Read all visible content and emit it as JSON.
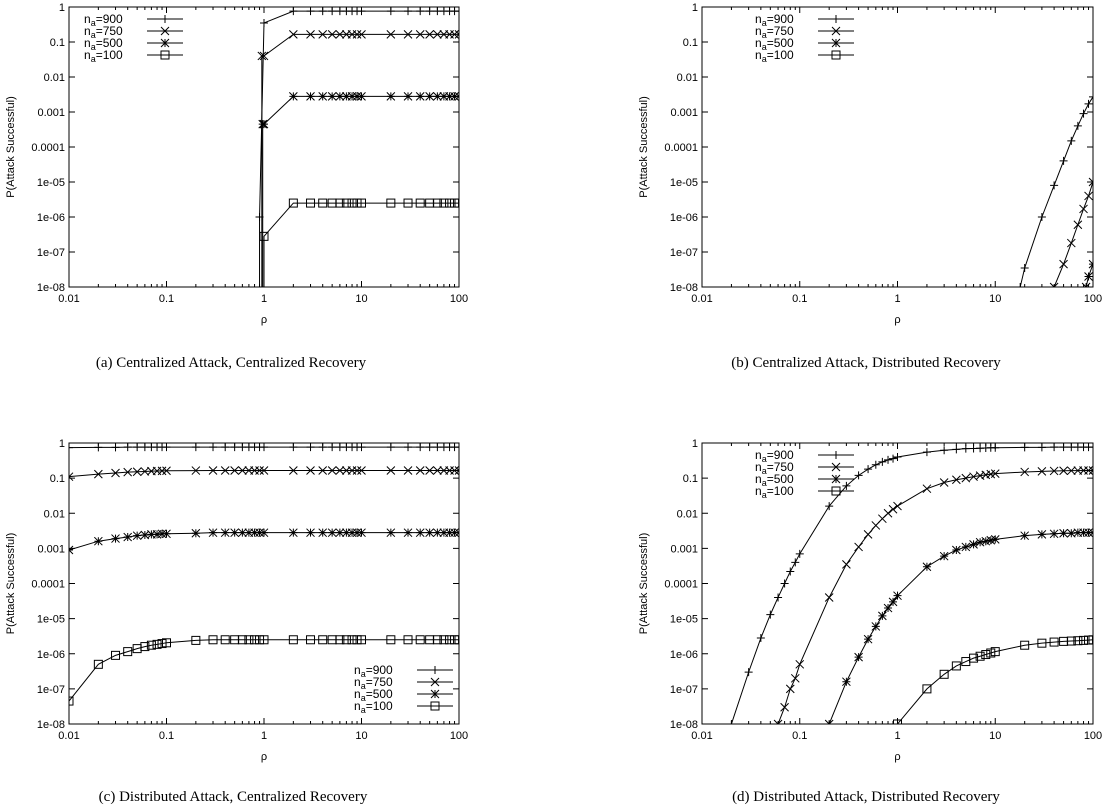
{
  "chart_data": [
    {
      "type": "line",
      "caption": "(a) Centralized Attack, Centralized Recovery",
      "xlabel": "ρ",
      "ylabel": "P(Attack Successful)",
      "xscale": "log",
      "yscale": "log",
      "xlim": [
        0.01,
        100
      ],
      "ylim": [
        1e-08,
        1
      ],
      "x_ticks": [
        "0.01",
        "0.1",
        "1",
        "10",
        "100"
      ],
      "y_ticks": [
        "1e-08",
        "1e-07",
        "1e-06",
        "1e-05",
        "0.0001",
        "0.001",
        "0.01",
        "0.1",
        "1"
      ],
      "legend_position": "top-left",
      "series": [
        {
          "label": "=900",
          "marker": "plus",
          "x": [
            0.9,
            1,
            2,
            3,
            4,
            5,
            6,
            7,
            8,
            9,
            10,
            20,
            30,
            40,
            50,
            60,
            70,
            80,
            90,
            100
          ],
          "y": [
            1e-06,
            0.35,
            0.76,
            0.76,
            0.76,
            0.76,
            0.76,
            0.76,
            0.76,
            0.76,
            0.76,
            0.76,
            0.76,
            0.76,
            0.76,
            0.76,
            0.76,
            0.76,
            0.76,
            0.76
          ]
        },
        {
          "label": "=750",
          "marker": "cross",
          "x": [
            0.95,
            1,
            2,
            3,
            4,
            5,
            6,
            7,
            8,
            9,
            10,
            20,
            30,
            40,
            50,
            60,
            70,
            80,
            90,
            100
          ],
          "y": [
            0.04,
            0.04,
            0.165,
            0.165,
            0.165,
            0.165,
            0.165,
            0.165,
            0.165,
            0.165,
            0.165,
            0.165,
            0.165,
            0.165,
            0.165,
            0.165,
            0.165,
            0.165,
            0.165,
            0.165
          ]
        },
        {
          "label": "=500",
          "marker": "star",
          "x": [
            0.97,
            1,
            2,
            3,
            4,
            5,
            6,
            7,
            8,
            9,
            10,
            20,
            30,
            40,
            50,
            60,
            70,
            80,
            90,
            100
          ],
          "y": [
            0.00045,
            0.00045,
            0.0028,
            0.0028,
            0.0028,
            0.0028,
            0.0028,
            0.0028,
            0.0028,
            0.0028,
            0.0028,
            0.0028,
            0.0028,
            0.0028,
            0.0028,
            0.0028,
            0.0028,
            0.0028,
            0.0028,
            0.0028
          ]
        },
        {
          "label": "=100",
          "marker": "square",
          "x": [
            1,
            2,
            3,
            4,
            5,
            6,
            7,
            8,
            9,
            10,
            20,
            30,
            40,
            50,
            60,
            70,
            80,
            90,
            100
          ],
          "y": [
            2.8e-07,
            2.5e-06,
            2.5e-06,
            2.5e-06,
            2.5e-06,
            2.5e-06,
            2.5e-06,
            2.5e-06,
            2.5e-06,
            2.5e-06,
            2.5e-06,
            2.5e-06,
            2.5e-06,
            2.5e-06,
            2.5e-06,
            2.5e-06,
            2.5e-06,
            2.5e-06,
            2.5e-06
          ]
        }
      ]
    },
    {
      "type": "line",
      "caption": "(b) Centralized Attack, Distributed Recovery",
      "xlabel": "ρ",
      "ylabel": "P(Attack Successful)",
      "xscale": "log",
      "yscale": "log",
      "xlim": [
        0.01,
        100
      ],
      "ylim": [
        1e-08,
        1
      ],
      "x_ticks": [
        "0.01",
        "0.1",
        "1",
        "10",
        "100"
      ],
      "y_ticks": [
        "1e-08",
        "1e-07",
        "1e-06",
        "1e-05",
        "0.0001",
        "0.001",
        "0.01",
        "0.1",
        "1"
      ],
      "legend_position": "top-left",
      "series": [
        {
          "label": "=900",
          "marker": "plus",
          "x": [
            18,
            20,
            30,
            40,
            50,
            60,
            70,
            80,
            90,
            100
          ],
          "y": [
            1e-08,
            3.5e-08,
            1e-06,
            8e-06,
            4e-05,
            0.00015,
            0.0004,
            0.0009,
            0.0017,
            0.0027
          ]
        },
        {
          "label": "=750",
          "marker": "cross",
          "x": [
            40,
            50,
            60,
            70,
            80,
            90,
            100
          ],
          "y": [
            1e-08,
            4.5e-08,
            1.8e-07,
            6e-07,
            1.7e-06,
            4e-06,
            1e-05
          ]
        },
        {
          "label": "=500",
          "marker": "star",
          "x": [
            85,
            90,
            100
          ],
          "y": [
            1e-08,
            2e-08,
            4.5e-08
          ]
        },
        {
          "label": "=100",
          "marker": "square",
          "x": [],
          "y": []
        }
      ]
    },
    {
      "type": "line",
      "caption": "(c) Distributed Attack, Centralized Recovery",
      "xlabel": "ρ",
      "ylabel": "P(Attack Successful)",
      "xscale": "log",
      "yscale": "log",
      "xlim": [
        0.01,
        100
      ],
      "ylim": [
        1e-08,
        1
      ],
      "x_ticks": [
        "0.01",
        "0.1",
        "1",
        "10",
        "100"
      ],
      "y_ticks": [
        "1e-08",
        "1e-07",
        "1e-06",
        "1e-05",
        "0.0001",
        "0.001",
        "0.01",
        "0.1",
        "1"
      ],
      "legend_position": "bottom-right",
      "series": [
        {
          "label": "=900",
          "marker": "plus",
          "x": [
            0.01,
            0.02,
            0.03,
            0.04,
            0.05,
            0.06,
            0.07,
            0.08,
            0.09,
            0.1,
            0.2,
            0.3,
            0.4,
            0.5,
            0.6,
            0.7,
            0.8,
            0.9,
            1,
            2,
            3,
            4,
            5,
            6,
            7,
            8,
            9,
            10,
            20,
            30,
            40,
            50,
            60,
            70,
            80,
            90,
            100
          ],
          "y": [
            0.74,
            0.75,
            0.75,
            0.76,
            0.76,
            0.76,
            0.76,
            0.76,
            0.76,
            0.76,
            0.76,
            0.76,
            0.76,
            0.76,
            0.76,
            0.76,
            0.76,
            0.76,
            0.76,
            0.76,
            0.76,
            0.76,
            0.76,
            0.76,
            0.76,
            0.76,
            0.76,
            0.76,
            0.76,
            0.76,
            0.76,
            0.76,
            0.76,
            0.76,
            0.76,
            0.76,
            0.76
          ]
        },
        {
          "label": "=750",
          "marker": "cross",
          "x": [
            0.01,
            0.02,
            0.03,
            0.04,
            0.05,
            0.06,
            0.07,
            0.08,
            0.09,
            0.1,
            0.2,
            0.3,
            0.4,
            0.5,
            0.6,
            0.7,
            0.8,
            0.9,
            1,
            2,
            3,
            4,
            5,
            6,
            7,
            8,
            9,
            10,
            20,
            30,
            40,
            50,
            60,
            70,
            80,
            90,
            100
          ],
          "y": [
            0.11,
            0.13,
            0.14,
            0.148,
            0.152,
            0.155,
            0.158,
            0.16,
            0.161,
            0.162,
            0.164,
            0.165,
            0.165,
            0.165,
            0.165,
            0.165,
            0.165,
            0.165,
            0.165,
            0.165,
            0.165,
            0.165,
            0.165,
            0.165,
            0.165,
            0.165,
            0.165,
            0.165,
            0.165,
            0.165,
            0.165,
            0.165,
            0.165,
            0.165,
            0.165,
            0.165,
            0.165
          ]
        },
        {
          "label": "=500",
          "marker": "star",
          "x": [
            0.01,
            0.02,
            0.03,
            0.04,
            0.05,
            0.06,
            0.07,
            0.08,
            0.09,
            0.1,
            0.2,
            0.3,
            0.4,
            0.5,
            0.6,
            0.7,
            0.8,
            0.9,
            1,
            2,
            3,
            4,
            5,
            6,
            7,
            8,
            9,
            10,
            20,
            30,
            40,
            50,
            60,
            70,
            80,
            90,
            100
          ],
          "y": [
            0.0009,
            0.0016,
            0.0019,
            0.0021,
            0.0023,
            0.0024,
            0.0025,
            0.0025,
            0.0026,
            0.0026,
            0.0027,
            0.0028,
            0.0028,
            0.0028,
            0.0028,
            0.0028,
            0.0028,
            0.0028,
            0.0028,
            0.0028,
            0.0028,
            0.0028,
            0.0028,
            0.0028,
            0.0028,
            0.0028,
            0.0028,
            0.0028,
            0.0028,
            0.0028,
            0.0028,
            0.0028,
            0.0028,
            0.0028,
            0.0028,
            0.0028,
            0.0028
          ]
        },
        {
          "label": "=100",
          "marker": "square",
          "x": [
            0.01,
            0.02,
            0.03,
            0.04,
            0.05,
            0.06,
            0.07,
            0.08,
            0.09,
            0.1,
            0.2,
            0.3,
            0.4,
            0.5,
            0.6,
            0.7,
            0.8,
            0.9,
            1,
            2,
            3,
            4,
            5,
            6,
            7,
            8,
            9,
            10,
            20,
            30,
            40,
            50,
            60,
            70,
            80,
            90,
            100
          ],
          "y": [
            4.5e-08,
            5e-07,
            9e-07,
            1.15e-06,
            1.4e-06,
            1.6e-06,
            1.75e-06,
            1.85e-06,
            1.95e-06,
            2.05e-06,
            2.4e-06,
            2.5e-06,
            2.5e-06,
            2.5e-06,
            2.5e-06,
            2.5e-06,
            2.5e-06,
            2.5e-06,
            2.5e-06,
            2.5e-06,
            2.5e-06,
            2.5e-06,
            2.5e-06,
            2.5e-06,
            2.5e-06,
            2.5e-06,
            2.5e-06,
            2.5e-06,
            2.5e-06,
            2.5e-06,
            2.5e-06,
            2.5e-06,
            2.5e-06,
            2.5e-06,
            2.5e-06,
            2.5e-06,
            2.5e-06
          ]
        }
      ]
    },
    {
      "type": "line",
      "caption": "(d) Distributed Attack, Distributed Recovery",
      "xlabel": "ρ",
      "ylabel": "P(Attack Successful)",
      "xscale": "log",
      "yscale": "log",
      "xlim": [
        0.01,
        100
      ],
      "ylim": [
        1e-08,
        1
      ],
      "x_ticks": [
        "0.01",
        "0.1",
        "1",
        "10",
        "100"
      ],
      "y_ticks": [
        "1e-08",
        "1e-07",
        "1e-06",
        "1e-05",
        "0.0001",
        "0.001",
        "0.01",
        "0.1",
        "1"
      ],
      "legend_position": "top-left",
      "series": [
        {
          "label": "=900",
          "marker": "plus",
          "x": [
            0.02,
            0.03,
            0.04,
            0.05,
            0.06,
            0.07,
            0.08,
            0.09,
            0.1,
            0.2,
            0.3,
            0.4,
            0.5,
            0.6,
            0.7,
            0.8,
            0.9,
            1,
            2,
            3,
            4,
            5,
            6,
            7,
            8,
            9,
            10,
            20,
            30,
            40,
            50,
            60,
            70,
            80,
            90,
            100
          ],
          "y": [
            1e-08,
            3e-07,
            2.8e-06,
            1.3e-05,
            4e-05,
            0.0001,
            0.00022,
            0.0004,
            0.0007,
            0.016,
            0.06,
            0.12,
            0.18,
            0.24,
            0.29,
            0.33,
            0.36,
            0.4,
            0.55,
            0.62,
            0.66,
            0.69,
            0.7,
            0.71,
            0.72,
            0.73,
            0.73,
            0.75,
            0.75,
            0.76,
            0.76,
            0.76,
            0.76,
            0.76,
            0.76,
            0.76
          ]
        },
        {
          "label": "=750",
          "marker": "cross",
          "x": [
            0.06,
            0.07,
            0.08,
            0.09,
            0.1,
            0.2,
            0.3,
            0.4,
            0.5,
            0.6,
            0.7,
            0.8,
            0.9,
            1,
            2,
            3,
            4,
            5,
            6,
            7,
            8,
            9,
            10,
            20,
            30,
            40,
            50,
            60,
            70,
            80,
            90,
            100
          ],
          "y": [
            1e-08,
            3e-08,
            1e-07,
            2e-07,
            5e-07,
            4e-05,
            0.00035,
            0.0011,
            0.0025,
            0.0045,
            0.007,
            0.01,
            0.013,
            0.016,
            0.05,
            0.075,
            0.09,
            0.1,
            0.11,
            0.118,
            0.124,
            0.13,
            0.134,
            0.15,
            0.156,
            0.16,
            0.162,
            0.163,
            0.164,
            0.165,
            0.165,
            0.165
          ]
        },
        {
          "label": "=500",
          "marker": "star",
          "x": [
            0.2,
            0.3,
            0.4,
            0.5,
            0.6,
            0.7,
            0.8,
            0.9,
            1,
            2,
            3,
            4,
            5,
            6,
            7,
            8,
            9,
            10,
            20,
            30,
            40,
            50,
            60,
            70,
            80,
            90,
            100
          ],
          "y": [
            1e-08,
            1.6e-07,
            8e-07,
            2.6e-06,
            6e-06,
            1.2e-05,
            2e-05,
            3e-05,
            4.5e-05,
            0.0003,
            0.0006,
            0.0009,
            0.0011,
            0.0013,
            0.0015,
            0.0016,
            0.0017,
            0.0018,
            0.0023,
            0.0025,
            0.0026,
            0.0027,
            0.0027,
            0.0028,
            0.0028,
            0.0028,
            0.0028
          ]
        },
        {
          "label": "=100",
          "marker": "square",
          "x": [
            1,
            2,
            3,
            4,
            5,
            6,
            7,
            8,
            9,
            10,
            20,
            30,
            40,
            50,
            60,
            70,
            80,
            90,
            100
          ],
          "y": [
            1e-08,
            1e-07,
            2.6e-07,
            4.5e-07,
            6e-07,
            7.5e-07,
            8.5e-07,
            9.5e-07,
            1.05e-06,
            1.15e-06,
            1.75e-06,
            2e-06,
            2.15e-06,
            2.25e-06,
            2.3e-06,
            2.35e-06,
            2.4e-06,
            2.45e-06,
            2.5e-06
          ]
        }
      ]
    }
  ]
}
